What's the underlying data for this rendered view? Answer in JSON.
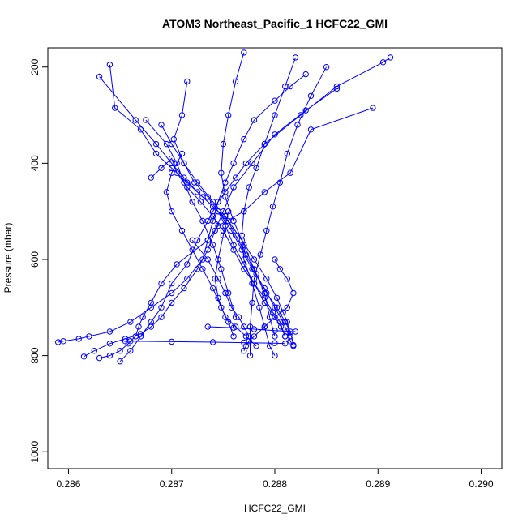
{
  "chart_data": {
    "type": "line",
    "title": "ATOM3 Northeast_Pacific_1 HCFC22_GMI",
    "xlabel": "HCFC22_GMI",
    "ylabel": "Pressure (mbar)",
    "xlim": [
      0.2858,
      0.2902
    ],
    "ylim": [
      1035,
      160
    ],
    "y_reversed": true,
    "x_ticks": [
      "0.286",
      "0.287",
      "0.288",
      "0.289",
      "0.290"
    ],
    "y_ticks": [
      "200",
      "400",
      "600",
      "800",
      "1000"
    ],
    "grid": false,
    "legend": "none",
    "series_color": "#0000ff",
    "series": [
      {
        "x": [
          0.28895,
          0.28835,
          0.28815,
          0.2879,
          0.2877,
          0.28745,
          0.28735,
          0.28705,
          0.2869,
          0.2868,
          0.28672,
          0.28668,
          0.28665,
          0.2866,
          0.28658,
          0.2865,
          0.2864,
          0.2863
        ],
        "y": [
          285,
          330,
          420,
          460,
          500,
          530,
          560,
          610,
          650,
          690,
          720,
          740,
          760,
          770,
          775,
          790,
          800,
          805
        ]
      },
      {
        "x": [
          0.28912,
          0.28905,
          0.2886,
          0.28825,
          0.2879,
          0.28772,
          0.28762,
          0.28752,
          0.28745,
          0.2874,
          0.28735,
          0.28725,
          0.28715,
          0.287,
          0.2869,
          0.2868,
          0.2867,
          0.2866,
          0.2865
        ],
        "y": [
          180,
          190,
          240,
          300,
          360,
          400,
          430,
          460,
          480,
          500,
          520,
          560,
          610,
          650,
          700,
          730,
          760,
          790,
          812
        ]
      },
      {
        "x": [
          0.2883,
          0.28815,
          0.288,
          0.2878,
          0.2877,
          0.2876,
          0.28752,
          0.28745,
          0.2874,
          0.28735,
          0.2873,
          0.28715,
          0.287,
          0.2868,
          0.2866,
          0.2864,
          0.2862,
          0.2861,
          0.28595,
          0.2859
        ],
        "y": [
          215,
          240,
          270,
          310,
          350,
          400,
          440,
          480,
          520,
          560,
          600,
          640,
          670,
          700,
          730,
          750,
          760,
          765,
          770,
          772
        ]
      },
      {
        "x": [
          0.2886,
          0.2883,
          0.288,
          0.28778,
          0.2876,
          0.2875,
          0.28742,
          0.28735,
          0.28725,
          0.28712,
          0.287,
          0.2869,
          0.2868,
          0.2867,
          0.28655,
          0.2864,
          0.28625,
          0.28615
        ],
        "y": [
          245,
          290,
          340,
          400,
          450,
          500,
          540,
          580,
          620,
          660,
          690,
          720,
          740,
          755,
          765,
          775,
          790,
          802
        ]
      },
      {
        "x": [
          0.2864,
          0.28645,
          0.2867,
          0.28685,
          0.287,
          0.28715,
          0.2873,
          0.28745,
          0.28758,
          0.28768,
          0.28778,
          0.2879,
          0.288,
          0.28808,
          0.28812,
          0.28815,
          0.28818
        ],
        "y": [
          195,
          285,
          330,
          380,
          410,
          440,
          470,
          500,
          540,
          580,
          620,
          660,
          700,
          730,
          750,
          770,
          780
        ]
      },
      {
        "x": [
          0.2863,
          0.28665,
          0.28685,
          0.287,
          0.28712,
          0.28725,
          0.2874,
          0.28755,
          0.28768,
          0.2878,
          0.28792,
          0.28802,
          0.28808,
          0.28812,
          0.28815
        ],
        "y": [
          220,
          310,
          360,
          400,
          430,
          460,
          490,
          520,
          560,
          600,
          640,
          680,
          710,
          730,
          760
        ]
      },
      {
        "x": [
          0.2869,
          0.287,
          0.28712,
          0.28722,
          0.28735,
          0.28745,
          0.28752,
          0.2876,
          0.2877,
          0.2878,
          0.2879,
          0.288,
          0.28806,
          0.2881
        ],
        "y": [
          320,
          360,
          400,
          440,
          470,
          500,
          530,
          570,
          610,
          650,
          690,
          720,
          740,
          760
        ]
      },
      {
        "x": [
          0.28715,
          0.2871,
          0.28702,
          0.28712,
          0.28725,
          0.2874,
          0.28752,
          0.28762,
          0.28772,
          0.28782,
          0.28792,
          0.28802,
          0.2881,
          0.28815,
          0.28818
        ],
        "y": [
          230,
          300,
          350,
          400,
          440,
          480,
          510,
          550,
          590,
          630,
          670,
          700,
          730,
          750,
          778
        ]
      },
      {
        "x": [
          0.2868,
          0.2869,
          0.287,
          0.28705,
          0.28715,
          0.28728,
          0.2874,
          0.2875,
          0.2876,
          0.2877,
          0.2878,
          0.2879,
          0.28798,
          0.28805,
          0.2881
        ],
        "y": [
          430,
          410,
          390,
          420,
          450,
          480,
          510,
          540,
          580,
          620,
          650,
          680,
          710,
          730,
          760
        ]
      },
      {
        "x": [
          0.2877,
          0.28762,
          0.28755,
          0.2875,
          0.28748,
          0.28752,
          0.2876,
          0.2877,
          0.2878,
          0.2879,
          0.28795,
          0.288
        ],
        "y": [
          170,
          230,
          300,
          360,
          420,
          470,
          520,
          570,
          620,
          670,
          720,
          760
        ]
      },
      {
        "x": [
          0.2882,
          0.2881,
          0.288,
          0.2879,
          0.28782,
          0.28775,
          0.2877,
          0.28768,
          0.2877,
          0.28778,
          0.28785,
          0.2879,
          0.28795,
          0.288
        ],
        "y": [
          180,
          240,
          300,
          360,
          410,
          450,
          500,
          550,
          600,
          650,
          700,
          740,
          780,
          800
        ]
      },
      {
        "x": [
          0.2885,
          0.28835,
          0.28822,
          0.28812,
          0.28805,
          0.28798,
          0.28792,
          0.28786,
          0.2878,
          0.28778,
          0.28776,
          0.28776
        ],
        "y": [
          200,
          260,
          320,
          380,
          440,
          490,
          540,
          590,
          640,
          690,
          740,
          800
        ]
      },
      {
        "x": [
          0.28675,
          0.28695,
          0.28705,
          0.28712,
          0.2872,
          0.2873,
          0.2874,
          0.28748,
          0.28755,
          0.28762
        ],
        "y": [
          310,
          360,
          400,
          440,
          480,
          520,
          570,
          620,
          670,
          720
        ]
      },
      {
        "x": [
          0.2871,
          0.287,
          0.28695,
          0.287,
          0.2871,
          0.2872,
          0.2873,
          0.2874,
          0.28748,
          0.28755,
          0.2876
        ],
        "y": [
          380,
          420,
          460,
          500,
          540,
          580,
          620,
          660,
          700,
          730,
          760
        ]
      },
      {
        "x": [
          0.288,
          0.28805,
          0.28812,
          0.28818,
          0.28812,
          0.288,
          0.2879,
          0.2878,
          0.28775,
          0.28772,
          0.2877
        ],
        "y": [
          600,
          620,
          640,
          670,
          700,
          720,
          740,
          760,
          770,
          780,
          790
        ]
      },
      {
        "x": [
          0.28755,
          0.2875,
          0.28745,
          0.28742,
          0.28745,
          0.28752,
          0.28762,
          0.28772,
          0.28782
        ],
        "y": [
          500,
          550,
          600,
          640,
          680,
          720,
          740,
          760,
          780
        ]
      },
      {
        "x": [
          0.2872,
          0.28735,
          0.28745,
          0.28752,
          0.28758,
          0.28765,
          0.2877,
          0.28775
        ],
        "y": [
          560,
          600,
          640,
          670,
          700,
          720,
          740,
          760
        ]
      },
      {
        "x": [
          0.28735,
          0.2876,
          0.2878,
          0.288,
          0.2882
        ],
        "y": [
          740,
          742,
          745,
          748,
          750
        ]
      },
      {
        "x": [
          0.28655,
          0.287,
          0.2874,
          0.2877,
          0.288,
          0.2881
        ],
        "y": [
          770,
          771,
          772,
          773,
          774,
          775
        ]
      }
    ]
  }
}
